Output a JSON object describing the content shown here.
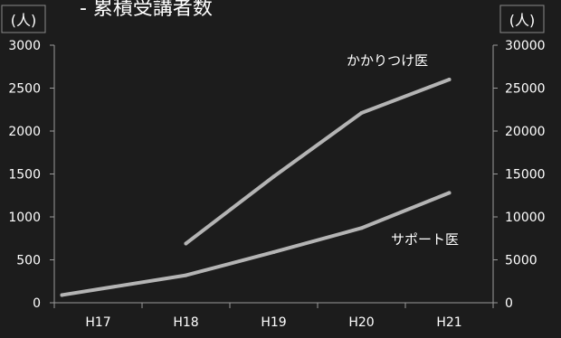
{
  "chart_data": {
    "type": "line",
    "title": "- 累積受講者数",
    "categories": [
      "H17",
      "H18",
      "H19",
      "H20",
      "H21"
    ],
    "left_axis": {
      "unit_label": "(人)",
      "ylim": [
        0,
        3000
      ],
      "ticks": [
        "0",
        "500",
        "1000",
        "1500",
        "2000",
        "2500",
        "3000"
      ]
    },
    "right_axis": {
      "unit_label": "(人)",
      "ylim": [
        0,
        30000
      ],
      "ticks": [
        "0",
        "5000",
        "10000",
        "15000",
        "20000",
        "25000",
        "30000"
      ]
    },
    "series": [
      {
        "name": "かかりつけ医",
        "axis": "left",
        "values": [
          null,
          690,
          1470,
          2210,
          2600
        ]
      },
      {
        "name": "サポート医",
        "axis": "right",
        "values": [
          900,
          3200,
          5900,
          8700,
          12800
        ]
      }
    ],
    "grid": false,
    "colors": {
      "background": "#1c1c1c",
      "line": "#b4b4b4",
      "axis": "#9a9a9a",
      "text": "#ffffff"
    }
  }
}
